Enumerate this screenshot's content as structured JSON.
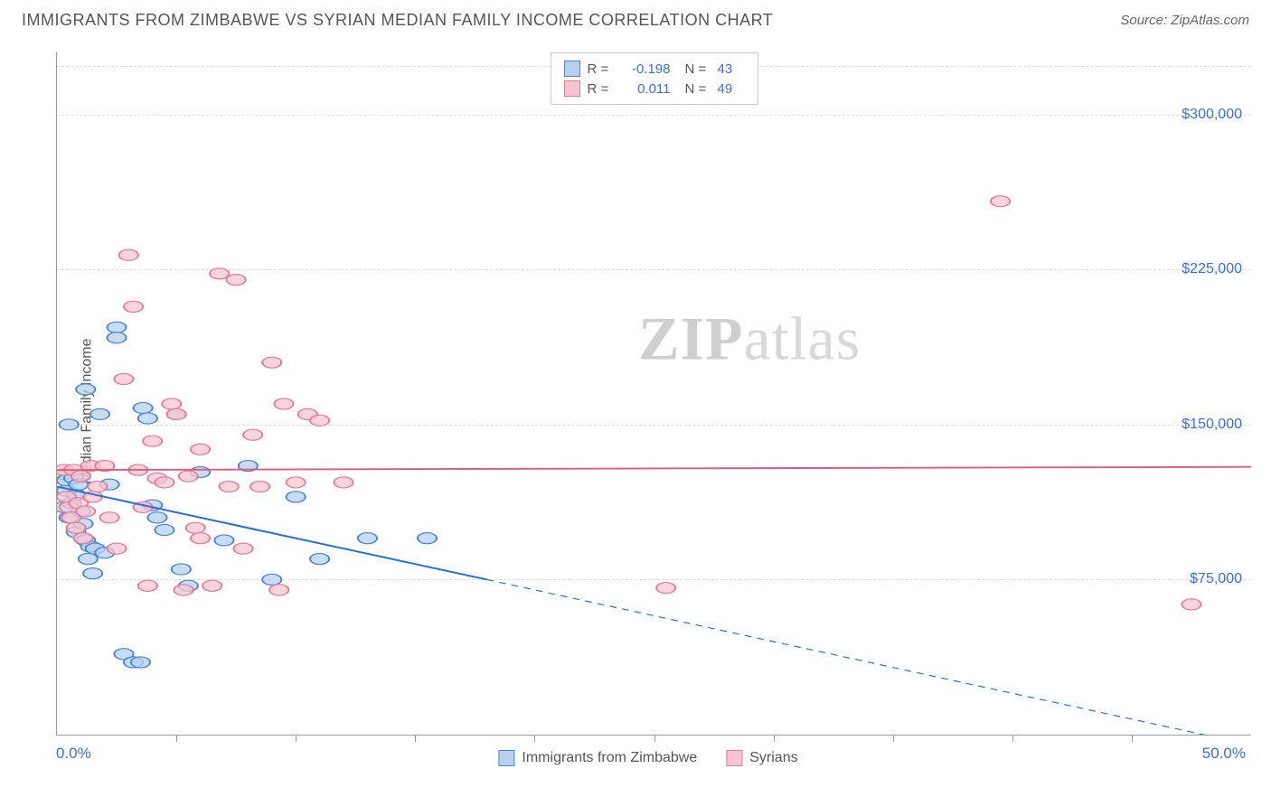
{
  "header": {
    "title": "IMMIGRANTS FROM ZIMBABWE VS SYRIAN MEDIAN FAMILY INCOME CORRELATION CHART",
    "source_prefix": "Source: ",
    "source_name": "ZipAtlas.com"
  },
  "watermark": {
    "zip": "ZIP",
    "atlas": "atlas"
  },
  "chart": {
    "type": "scatter",
    "ylabel": "Median Family Income",
    "xlim": [
      0,
      50
    ],
    "ylim": [
      0,
      330000
    ],
    "x_tick_positions": [
      5,
      10,
      15,
      20,
      25,
      30,
      35,
      40,
      45
    ],
    "x_min_label": "0.0%",
    "x_max_label": "50.0%",
    "y_gridlines": [
      75000,
      150000,
      225000,
      300000
    ],
    "y_tick_labels": [
      "$75,000",
      "$150,000",
      "$225,000",
      "$300,000"
    ],
    "grid_color": "#dddddd",
    "axis_color": "#999999",
    "label_color": "#3b6fd4",
    "marker_radius": 8,
    "marker_stroke_width": 1.5,
    "line_width": 2.5,
    "series": [
      {
        "name": "Immigrants from Zimbabwe",
        "fill": "#b6d0ef",
        "stroke": "#4a86d0",
        "line_color": "#2a6fd4",
        "R": "-0.198",
        "N": "43",
        "trend": {
          "x1": 0,
          "y1": 120000,
          "x2_solid": 18,
          "y2_solid": 75000,
          "x2": 50,
          "y2": -5000
        },
        "points": [
          [
            0.3,
            126000
          ],
          [
            0.3,
            110000
          ],
          [
            0.4,
            118000
          ],
          [
            0.4,
            123000
          ],
          [
            0.5,
            150000
          ],
          [
            0.5,
            105000
          ],
          [
            0.6,
            112000
          ],
          [
            0.7,
            124000
          ],
          [
            0.8,
            116000
          ],
          [
            0.8,
            98000
          ],
          [
            0.9,
            121000
          ],
          [
            1.0,
            108000
          ],
          [
            1.1,
            102000
          ],
          [
            1.2,
            167000
          ],
          [
            1.2,
            94000
          ],
          [
            1.3,
            85000
          ],
          [
            1.4,
            91000
          ],
          [
            1.5,
            78000
          ],
          [
            1.6,
            90000
          ],
          [
            1.8,
            155000
          ],
          [
            2.0,
            88000
          ],
          [
            2.2,
            121000
          ],
          [
            2.5,
            197000
          ],
          [
            2.5,
            192000
          ],
          [
            2.8,
            39000
          ],
          [
            3.2,
            35000
          ],
          [
            3.5,
            35000
          ],
          [
            3.6,
            158000
          ],
          [
            3.8,
            153000
          ],
          [
            4.0,
            111000
          ],
          [
            4.2,
            105000
          ],
          [
            4.5,
            99000
          ],
          [
            5.0,
            155000
          ],
          [
            5.2,
            80000
          ],
          [
            5.5,
            72000
          ],
          [
            6.0,
            127000
          ],
          [
            7.0,
            94000
          ],
          [
            8.0,
            130000
          ],
          [
            9.0,
            75000
          ],
          [
            10.0,
            115000
          ],
          [
            11.0,
            85000
          ],
          [
            13.0,
            95000
          ],
          [
            15.5,
            95000
          ]
        ]
      },
      {
        "name": "Syrians",
        "fill": "#f6c5d1",
        "stroke": "#e77a95",
        "line_color": "#e05a7d",
        "R": "0.011",
        "N": "49",
        "trend": {
          "x1": 0,
          "y1": 128000,
          "x2_solid": 50,
          "y2_solid": 129500,
          "x2": 50,
          "y2": 129500
        },
        "points": [
          [
            0.3,
            128000
          ],
          [
            0.4,
            115000
          ],
          [
            0.5,
            110000
          ],
          [
            0.6,
            105000
          ],
          [
            0.7,
            128000
          ],
          [
            0.8,
            100000
          ],
          [
            0.9,
            112000
          ],
          [
            1.0,
            125000
          ],
          [
            1.1,
            95000
          ],
          [
            1.2,
            108000
          ],
          [
            1.4,
            130000
          ],
          [
            1.5,
            115000
          ],
          [
            1.7,
            120000
          ],
          [
            2.0,
            130000
          ],
          [
            2.2,
            105000
          ],
          [
            2.5,
            90000
          ],
          [
            2.8,
            172000
          ],
          [
            3.0,
            232000
          ],
          [
            3.2,
            207000
          ],
          [
            3.4,
            128000
          ],
          [
            3.6,
            110000
          ],
          [
            3.8,
            72000
          ],
          [
            4.2,
            124000
          ],
          [
            4.5,
            122000
          ],
          [
            4.8,
            160000
          ],
          [
            5.0,
            155000
          ],
          [
            5.3,
            70000
          ],
          [
            5.5,
            125000
          ],
          [
            5.8,
            100000
          ],
          [
            6.0,
            138000
          ],
          [
            6.5,
            72000
          ],
          [
            6.8,
            223000
          ],
          [
            7.2,
            120000
          ],
          [
            7.5,
            220000
          ],
          [
            7.8,
            90000
          ],
          [
            8.2,
            145000
          ],
          [
            8.5,
            120000
          ],
          [
            9.0,
            180000
          ],
          [
            9.3,
            70000
          ],
          [
            9.5,
            160000
          ],
          [
            10.0,
            122000
          ],
          [
            10.5,
            155000
          ],
          [
            11.0,
            152000
          ],
          [
            12.0,
            122000
          ],
          [
            25.5,
            71000
          ],
          [
            39.5,
            258000
          ],
          [
            47.5,
            63000
          ],
          [
            6.0,
            95000
          ],
          [
            4.0,
            142000
          ]
        ]
      }
    ],
    "bottom_legend": [
      {
        "label": "Immigrants from Zimbabwe",
        "fill": "#b6d0ef",
        "stroke": "#4a86d0"
      },
      {
        "label": "Syrians",
        "fill": "#f6c5d1",
        "stroke": "#e77a95"
      }
    ]
  }
}
